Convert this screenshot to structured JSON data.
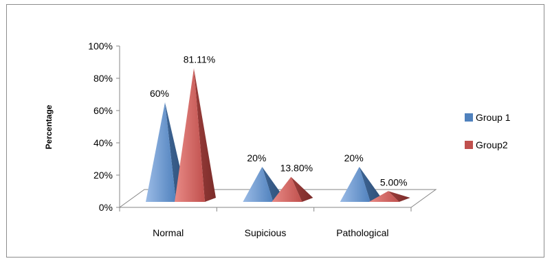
{
  "chart_data": {
    "type": "bar",
    "style": "3d-pyramid",
    "categories": [
      "Normal",
      "Supicious",
      "Pathological"
    ],
    "series": [
      {
        "name": "Group 1",
        "values": [
          60,
          20,
          20
        ],
        "labels": [
          "60%",
          "20%",
          "20%"
        ],
        "color": "#4f81bd"
      },
      {
        "name": "Group2",
        "values": [
          81.11,
          13.8,
          5.0
        ],
        "labels": [
          "81.11%",
          "13.80%",
          "5.00%"
        ],
        "color": "#c0504d"
      }
    ],
    "ylabel": "Percentage",
    "ylim": [
      0,
      100
    ],
    "yticks": [
      "0%",
      "20%",
      "40%",
      "60%",
      "80%",
      "100%"
    ],
    "legend": "right",
    "grid": false
  }
}
